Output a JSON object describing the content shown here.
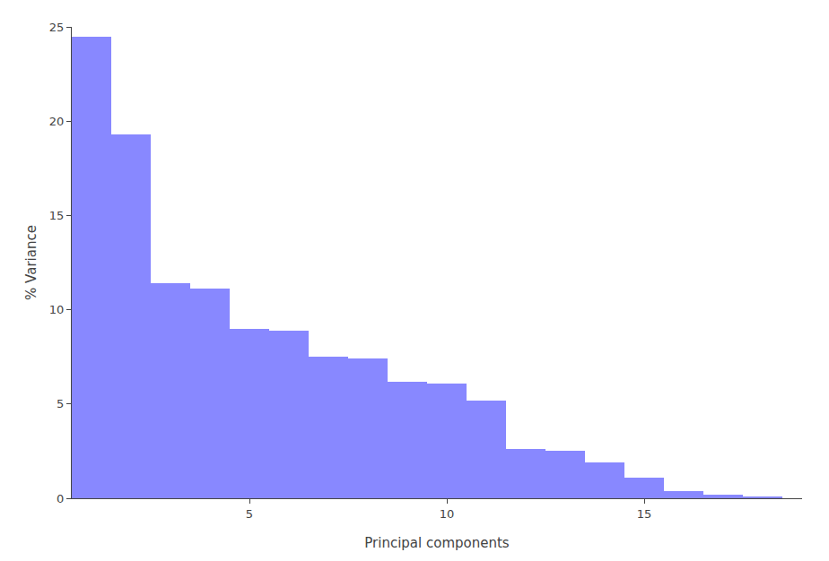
{
  "chart_data": {
    "type": "bar",
    "x": [
      1,
      2,
      3,
      4,
      5,
      6,
      7,
      8,
      9,
      10,
      11,
      12,
      13,
      14,
      15,
      16,
      17,
      18
    ],
    "values": [
      24.5,
      19.3,
      11.4,
      11.1,
      9.0,
      8.9,
      7.5,
      7.4,
      6.2,
      6.1,
      5.2,
      2.6,
      2.5,
      1.9,
      1.1,
      0.4,
      0.2,
      0.1
    ],
    "color": "#8888ff",
    "xlabel": "Principal components",
    "ylabel": "% Variance",
    "xlim": [
      0.5,
      19
    ],
    "xticks": [
      5,
      10,
      15
    ],
    "ylim": [
      0,
      25
    ],
    "yticks": [
      0,
      5,
      10,
      15,
      20,
      25
    ],
    "grid": false
  }
}
